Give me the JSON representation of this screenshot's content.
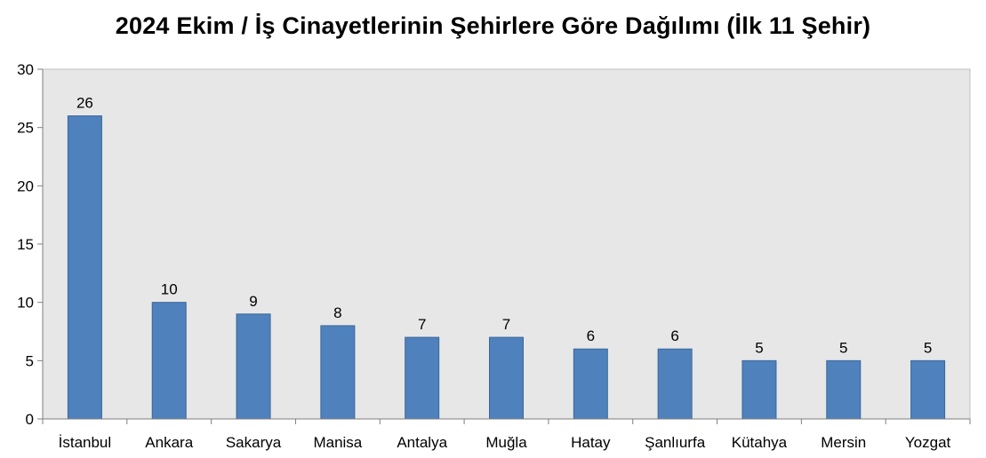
{
  "chart_data": {
    "type": "bar",
    "title": "2024 Ekim / İş Cinayetlerinin Şehirlere Göre Dağılımı (İlk 11 Şehir)",
    "categories": [
      "İstanbul",
      "Ankara",
      "Sakarya",
      "Manisa",
      "Antalya",
      "Muğla",
      "Hatay",
      "Şanlıurfa",
      "Kütahya",
      "Mersin",
      "Yozgat"
    ],
    "values": [
      26,
      10,
      9,
      8,
      7,
      7,
      6,
      6,
      5,
      5,
      5
    ],
    "xlabel": "",
    "ylabel": "",
    "ylim": [
      0,
      30
    ],
    "yticks": [
      0,
      5,
      10,
      15,
      20,
      25,
      30
    ],
    "grid": false,
    "legend": "none",
    "colors": {
      "bar_fill": "#4f81bd",
      "bar_stroke": "#3a6799",
      "plot_background": "#e7e7e7",
      "axis": "#7f7f7f"
    }
  }
}
